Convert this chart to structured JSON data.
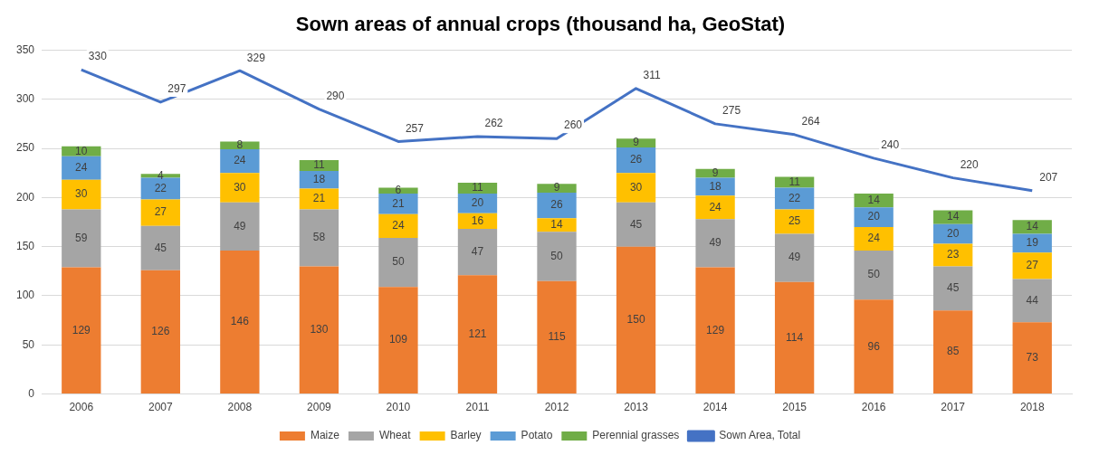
{
  "chart_data": {
    "type": "bar",
    "title": "Sown areas of annual crops (thousand ha, GeoStat)",
    "categories": [
      "2006",
      "2007",
      "2008",
      "2009",
      "2010",
      "2011",
      "2012",
      "2013",
      "2014",
      "2015",
      "2016",
      "2017",
      "2018"
    ],
    "stacked": true,
    "ylim": [
      0,
      350
    ],
    "yticks": [
      0,
      50,
      100,
      150,
      200,
      250,
      300,
      350
    ],
    "grid": "y",
    "legend": "bottom",
    "data_labels": true,
    "marker": "none",
    "series": [
      {
        "name": "Maize",
        "color": "#ed7d31",
        "values": [
          129,
          126,
          146,
          130,
          109,
          121,
          115,
          150,
          129,
          114,
          96,
          85,
          73
        ]
      },
      {
        "name": "Wheat",
        "color": "#a5a5a5",
        "values": [
          59,
          45,
          49,
          58,
          50,
          47,
          50,
          45,
          49,
          49,
          50,
          45,
          44
        ]
      },
      {
        "name": "Barley",
        "color": "#ffc000",
        "values": [
          30,
          27,
          30,
          21,
          24,
          16,
          14,
          30,
          24,
          25,
          24,
          23,
          27
        ]
      },
      {
        "name": "Potato",
        "color": "#5b9bd5",
        "values": [
          24,
          22,
          24,
          18,
          21,
          20,
          26,
          26,
          18,
          22,
          20,
          20,
          19
        ]
      },
      {
        "name": "Perennial grasses",
        "color": "#70ad47",
        "values": [
          10,
          4,
          8,
          11,
          6,
          11,
          9,
          9,
          9,
          11,
          14,
          14,
          14
        ]
      },
      {
        "name": "Sown Area, Total",
        "type": "line",
        "color": "#4472c4",
        "values": [
          330,
          297,
          329,
          290,
          257,
          262,
          260,
          311,
          275,
          264,
          240,
          220,
          207
        ]
      }
    ]
  }
}
